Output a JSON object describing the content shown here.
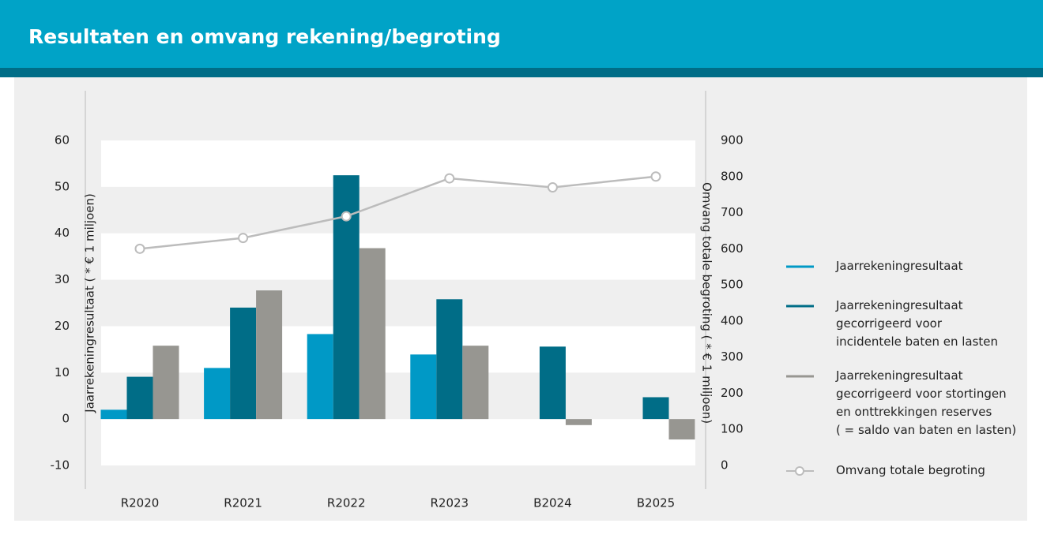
{
  "header": {
    "title": "Resultaten en omvang rekening/begroting"
  },
  "chart_data": {
    "type": "bar",
    "ylabel": "Jaarrekeningresultaat ( * € 1 miljoen)",
    "y2label": "Omvang totale begroting ( * € 1 miljoen)",
    "categories": [
      "R2020",
      "R2021",
      "R2022",
      "R2023",
      "B2024",
      "B2025"
    ],
    "series": [
      {
        "name": "Jaarrekeningresultaat",
        "color": "#0099c6",
        "values": [
          2,
          11,
          18.3,
          13.9,
          null,
          null
        ]
      },
      {
        "name": "Jaarrekeningresultaat\ngecorrigeerd voor\nincidentele baten en lasten",
        "color": "#006d87",
        "values": [
          9.1,
          24,
          52.5,
          25.8,
          15.6,
          4.7
        ]
      },
      {
        "name": "Jaarrekeningresultaat\ngecorrigeerd voor stortingen\nen onttrekkingen reserves\n( = saldo van baten en lasten)",
        "color": "#979691",
        "values": [
          15.8,
          27.7,
          36.8,
          15.8,
          -1.3,
          -4.4
        ]
      },
      {
        "name": "Omvang totale begroting",
        "color": "#bcbcbc",
        "type": "line",
        "axis": "y2",
        "values": [
          600,
          630,
          690,
          795,
          770,
          800
        ]
      }
    ],
    "ylim": [
      -10,
      60
    ],
    "yticks": [
      -10,
      0,
      10,
      20,
      30,
      40,
      50,
      60
    ],
    "y2lim": [
      0,
      900
    ],
    "y2ticks": [
      0,
      100,
      200,
      300,
      400,
      500,
      600,
      700,
      800,
      900
    ],
    "grid": true,
    "legend": "right"
  }
}
